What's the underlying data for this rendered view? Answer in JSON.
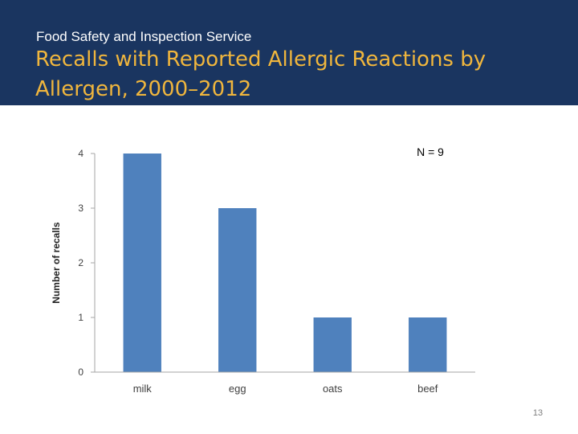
{
  "header": {
    "subtitle": "Food Safety and Inspection Service",
    "title": "Recalls with Reported Allergic Reactions by Allergen, 2000–2012"
  },
  "chart_data": {
    "type": "bar",
    "categories": [
      "milk",
      "egg",
      "oats",
      "beef"
    ],
    "values": [
      4,
      3,
      1,
      1
    ],
    "ylabel": "Number of recalls",
    "ylim": [
      0,
      4
    ],
    "yticks": [
      0,
      1,
      2,
      3,
      4
    ],
    "annotation": "N = 9",
    "bar_color": "#4f81bd",
    "grid": false,
    "legend": "none"
  },
  "footer": {
    "page_number": "13"
  },
  "colors": {
    "header_background": "#1a3560",
    "title": "#f0b63d",
    "subtitle": "#ffffff"
  }
}
